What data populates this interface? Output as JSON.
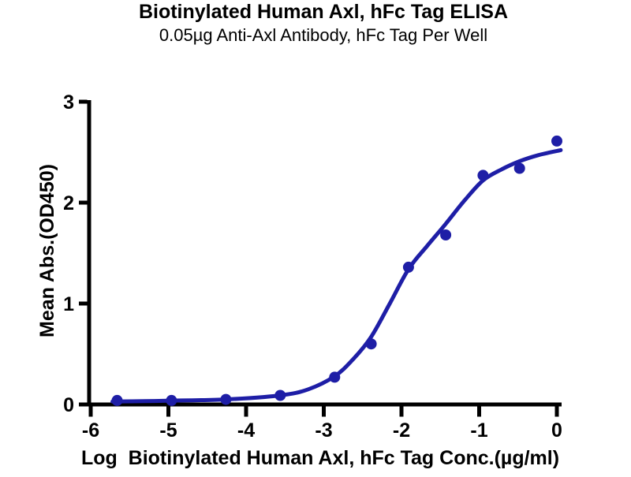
{
  "page": {
    "background": "#ffffff"
  },
  "chart_data": {
    "type": "scatter",
    "title": "Biotinylated Human Axl, hFc Tag ELISA",
    "subtitle": "0.05µg Anti-Axl Antibody, hFc Tag Per Well",
    "xlabel": "Log  Biotinylated Human Axl, hFc Tag Conc.(µg/ml)",
    "ylabel": "Mean Abs.(OD450)",
    "xlim": [
      -6,
      0
    ],
    "ylim": [
      0,
      3
    ],
    "x_ticks": [
      "-6",
      "-5",
      "-4",
      "-3",
      "-2",
      "-1",
      "0"
    ],
    "x_tick_values": [
      -6,
      -5,
      -4,
      -3,
      -2,
      -1,
      0
    ],
    "y_ticks": [
      "0",
      "1",
      "2",
      "3"
    ],
    "y_tick_values": [
      0,
      1,
      2,
      3
    ],
    "grid": false,
    "legend_position": "none",
    "axis_color": "#000000",
    "text_color": "#000000",
    "series": [
      {
        "name": "Biotinylated Human Axl, hFc Tag",
        "marker": "circle",
        "marker_color": "#1e1ea6",
        "x": [
          -5.66,
          -4.96,
          -4.26,
          -3.56,
          -2.86,
          -2.39,
          -1.91,
          -1.43,
          -0.95,
          -0.48,
          0
        ],
        "y": [
          0.04,
          0.04,
          0.05,
          0.09,
          0.27,
          0.6,
          1.36,
          1.68,
          2.27,
          2.34,
          2.61
        ]
      }
    ],
    "fit_curve": {
      "model": "4PL sigmoidal dose-response fit",
      "line_color": "#1e1ea6",
      "points": [
        [
          -5.72,
          0.03
        ],
        [
          -5.3,
          0.033
        ],
        [
          -4.96,
          0.038
        ],
        [
          -4.26,
          0.05
        ],
        [
          -3.56,
          0.09
        ],
        [
          -3.2,
          0.15
        ],
        [
          -2.86,
          0.28
        ],
        [
          -2.62,
          0.45
        ],
        [
          -2.39,
          0.67
        ],
        [
          -2.15,
          1.0
        ],
        [
          -1.91,
          1.34
        ],
        [
          -1.67,
          1.57
        ],
        [
          -1.43,
          1.79
        ],
        [
          -1.19,
          2.02
        ],
        [
          -0.95,
          2.22
        ],
        [
          -0.71,
          2.33
        ],
        [
          -0.48,
          2.41
        ],
        [
          -0.24,
          2.47
        ],
        [
          0.05,
          2.52
        ]
      ]
    }
  }
}
